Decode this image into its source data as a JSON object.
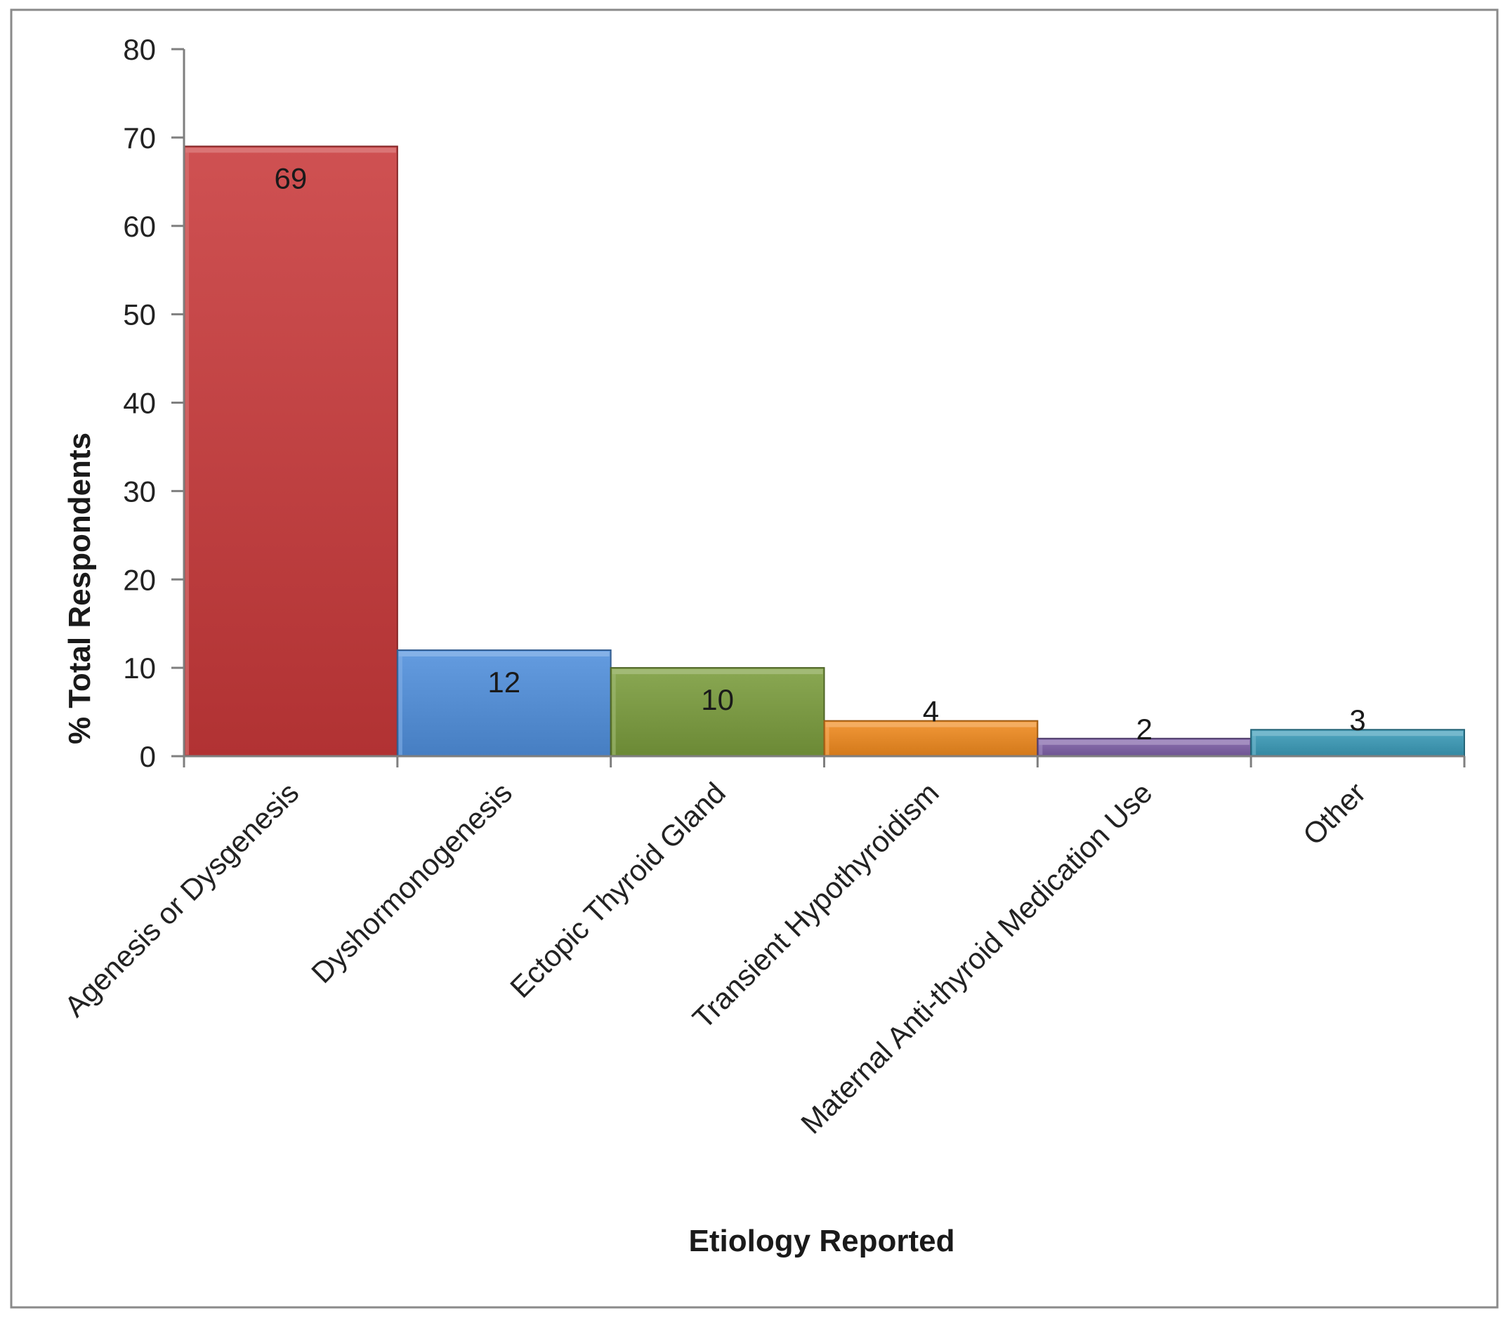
{
  "chart_data": {
    "type": "bar",
    "categories": [
      "Agenesis or Dysgenesis",
      "Dyshormonogenesis",
      "Ectopic Thyroid Gland",
      "Transient Hypothyroidism",
      "Maternal Anti-thyroid Medication Use",
      "Other"
    ],
    "values": [
      69,
      12,
      10,
      4,
      2,
      3
    ],
    "data_labels": [
      "69",
      "12",
      "10",
      "4",
      "2",
      "3"
    ],
    "bar_colors": [
      "#c9393a",
      "#4f8fdc",
      "#7a9c3c",
      "#f08a1e",
      "#7d5fa6",
      "#3a9bb8"
    ],
    "title": "",
    "xlabel": "Etiology Reported",
    "ylabel": "% Total Respondents",
    "ylim": [
      0,
      80
    ],
    "yticks": [
      0,
      10,
      20,
      30,
      40,
      50,
      60,
      70,
      80
    ],
    "grid": false,
    "legend": "none",
    "frame_color": "#8a8a8a",
    "axis_color": "#7f7f7f"
  }
}
